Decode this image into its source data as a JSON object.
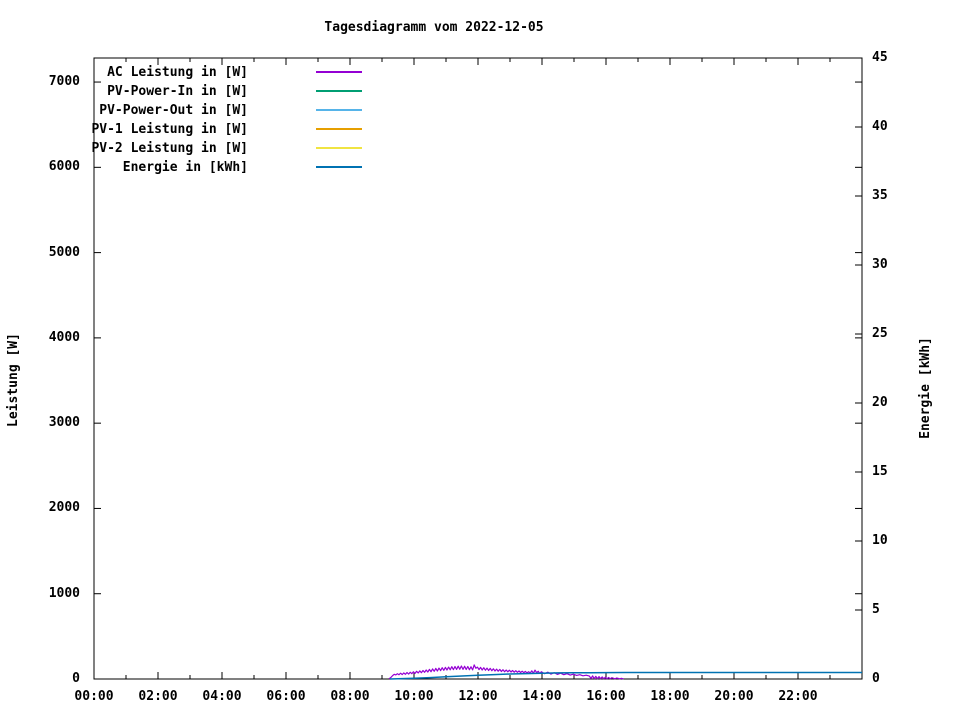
{
  "window": {
    "background": "#ffffff",
    "frame_color": "#000000"
  },
  "chart_data": {
    "type": "line",
    "title": "Tagesdiagramm vom 2022-12-05",
    "ylabel": "Leistung [W]",
    "y2label": "Energie [kWh]",
    "grid": false,
    "legend_position": "top-left-inside",
    "xlim_hours": [
      0,
      24
    ],
    "ylim": [
      0,
      7282
    ],
    "y2lim": [
      0,
      45
    ],
    "x_major_step_hours": 2,
    "x_minor_step_hours": 1,
    "x_major_tick_labels": [
      "00:00",
      "02:00",
      "04:00",
      "06:00",
      "08:00",
      "10:00",
      "12:00",
      "14:00",
      "16:00",
      "18:00",
      "20:00",
      "22:00"
    ],
    "y_ticks": [
      0,
      1000,
      2000,
      3000,
      4000,
      5000,
      6000,
      7000
    ],
    "y2_ticks": [
      0,
      5,
      10,
      15,
      20,
      25,
      30,
      35,
      40,
      45
    ],
    "series": [
      {
        "name": "AC Leistung in [W]",
        "color": "#9400D3",
        "axis": "y",
        "points": [
          [
            9.22,
            2
          ],
          [
            9.28,
            20
          ],
          [
            9.33,
            40
          ],
          [
            9.38,
            55
          ],
          [
            9.43,
            48
          ],
          [
            9.48,
            62
          ],
          [
            9.53,
            50
          ],
          [
            9.58,
            68
          ],
          [
            9.63,
            52
          ],
          [
            9.68,
            72
          ],
          [
            9.73,
            55
          ],
          [
            9.78,
            76
          ],
          [
            9.83,
            58
          ],
          [
            9.88,
            80
          ],
          [
            9.93,
            62
          ],
          [
            9.98,
            85
          ],
          [
            10.03,
            66
          ],
          [
            10.08,
            90
          ],
          [
            10.13,
            70
          ],
          [
            10.18,
            95
          ],
          [
            10.23,
            74
          ],
          [
            10.28,
            100
          ],
          [
            10.33,
            78
          ],
          [
            10.38,
            106
          ],
          [
            10.43,
            82
          ],
          [
            10.48,
            112
          ],
          [
            10.53,
            86
          ],
          [
            10.58,
            118
          ],
          [
            10.63,
            90
          ],
          [
            10.68,
            124
          ],
          [
            10.73,
            94
          ],
          [
            10.78,
            128
          ],
          [
            10.83,
            98
          ],
          [
            10.88,
            132
          ],
          [
            10.93,
            102
          ],
          [
            10.98,
            136
          ],
          [
            11.03,
            106
          ],
          [
            11.08,
            140
          ],
          [
            11.13,
            108
          ],
          [
            11.18,
            144
          ],
          [
            11.23,
            110
          ],
          [
            11.28,
            147
          ],
          [
            11.33,
            112
          ],
          [
            11.38,
            150
          ],
          [
            11.43,
            114
          ],
          [
            11.48,
            152
          ],
          [
            11.53,
            113
          ],
          [
            11.58,
            149
          ],
          [
            11.63,
            111
          ],
          [
            11.68,
            146
          ],
          [
            11.73,
            109
          ],
          [
            11.78,
            143
          ],
          [
            11.83,
            107
          ],
          [
            11.88,
            165
          ],
          [
            11.93,
            125
          ],
          [
            11.98,
            140
          ],
          [
            12.03,
            110
          ],
          [
            12.08,
            136
          ],
          [
            12.13,
            106
          ],
          [
            12.18,
            132
          ],
          [
            12.23,
            103
          ],
          [
            12.28,
            128
          ],
          [
            12.33,
            100
          ],
          [
            12.38,
            124
          ],
          [
            12.43,
            97
          ],
          [
            12.48,
            120
          ],
          [
            12.53,
            94
          ],
          [
            12.58,
            116
          ],
          [
            12.63,
            91
          ],
          [
            12.68,
            112
          ],
          [
            12.73,
            88
          ],
          [
            12.78,
            109
          ],
          [
            12.83,
            86
          ],
          [
            12.88,
            106
          ],
          [
            12.93,
            84
          ],
          [
            12.98,
            103
          ],
          [
            13.03,
            82
          ],
          [
            13.08,
            100
          ],
          [
            13.13,
            80
          ],
          [
            13.18,
            97
          ],
          [
            13.23,
            78
          ],
          [
            13.28,
            94
          ],
          [
            13.33,
            76
          ],
          [
            13.38,
            91
          ],
          [
            13.43,
            74
          ],
          [
            13.48,
            89
          ],
          [
            13.53,
            72
          ],
          [
            13.58,
            86
          ],
          [
            13.63,
            70
          ],
          [
            13.68,
            96
          ],
          [
            13.73,
            68
          ],
          [
            13.78,
            104
          ],
          [
            13.83,
            75
          ],
          [
            13.88,
            90
          ],
          [
            13.93,
            66
          ],
          [
            13.98,
            86
          ],
          [
            14.08,
            62
          ],
          [
            14.18,
            80
          ],
          [
            14.28,
            58
          ],
          [
            14.38,
            74
          ],
          [
            14.48,
            54
          ],
          [
            14.58,
            68
          ],
          [
            14.68,
            50
          ],
          [
            14.78,
            62
          ],
          [
            14.88,
            46
          ],
          [
            14.98,
            56
          ],
          [
            15.08,
            42
          ],
          [
            15.18,
            50
          ],
          [
            15.28,
            38
          ],
          [
            15.38,
            44
          ],
          [
            15.48,
            34
          ],
          [
            15.53,
            6
          ],
          [
            15.58,
            36
          ],
          [
            15.63,
            5
          ],
          [
            15.68,
            30
          ],
          [
            15.73,
            4
          ],
          [
            15.78,
            28
          ],
          [
            15.83,
            3
          ],
          [
            15.88,
            25
          ],
          [
            15.93,
            2
          ],
          [
            15.98,
            22
          ],
          [
            16.03,
            2
          ],
          [
            16.08,
            18
          ],
          [
            16.13,
            2
          ],
          [
            16.18,
            15
          ],
          [
            16.28,
            2
          ],
          [
            16.33,
            12
          ],
          [
            16.43,
            2
          ],
          [
            16.48,
            8
          ],
          [
            16.55,
            1
          ]
        ]
      },
      {
        "name": "PV-Power-In in [W]",
        "color": "#009E73",
        "axis": "y",
        "points": []
      },
      {
        "name": "PV-Power-Out in [W]",
        "color": "#56B4E9",
        "axis": "y",
        "points": []
      },
      {
        "name": "PV-1 Leistung in [W]",
        "color": "#E69F00",
        "axis": "y",
        "points": []
      },
      {
        "name": "PV-2 Leistung in [W]",
        "color": "#F0E442",
        "axis": "y",
        "points": []
      },
      {
        "name": "Energie in [kWh]",
        "color": "#0072B2",
        "axis": "y2",
        "points": [
          [
            9.25,
            0.0
          ],
          [
            10.0,
            0.05
          ],
          [
            10.5,
            0.1
          ],
          [
            11.0,
            0.16
          ],
          [
            11.5,
            0.22
          ],
          [
            12.0,
            0.27
          ],
          [
            12.5,
            0.32
          ],
          [
            13.0,
            0.36
          ],
          [
            13.5,
            0.39
          ],
          [
            14.0,
            0.42
          ],
          [
            14.5,
            0.44
          ],
          [
            15.0,
            0.45
          ],
          [
            15.5,
            0.46
          ],
          [
            16.0,
            0.465
          ],
          [
            16.6,
            0.47
          ],
          [
            24.0,
            0.47
          ]
        ]
      }
    ]
  }
}
